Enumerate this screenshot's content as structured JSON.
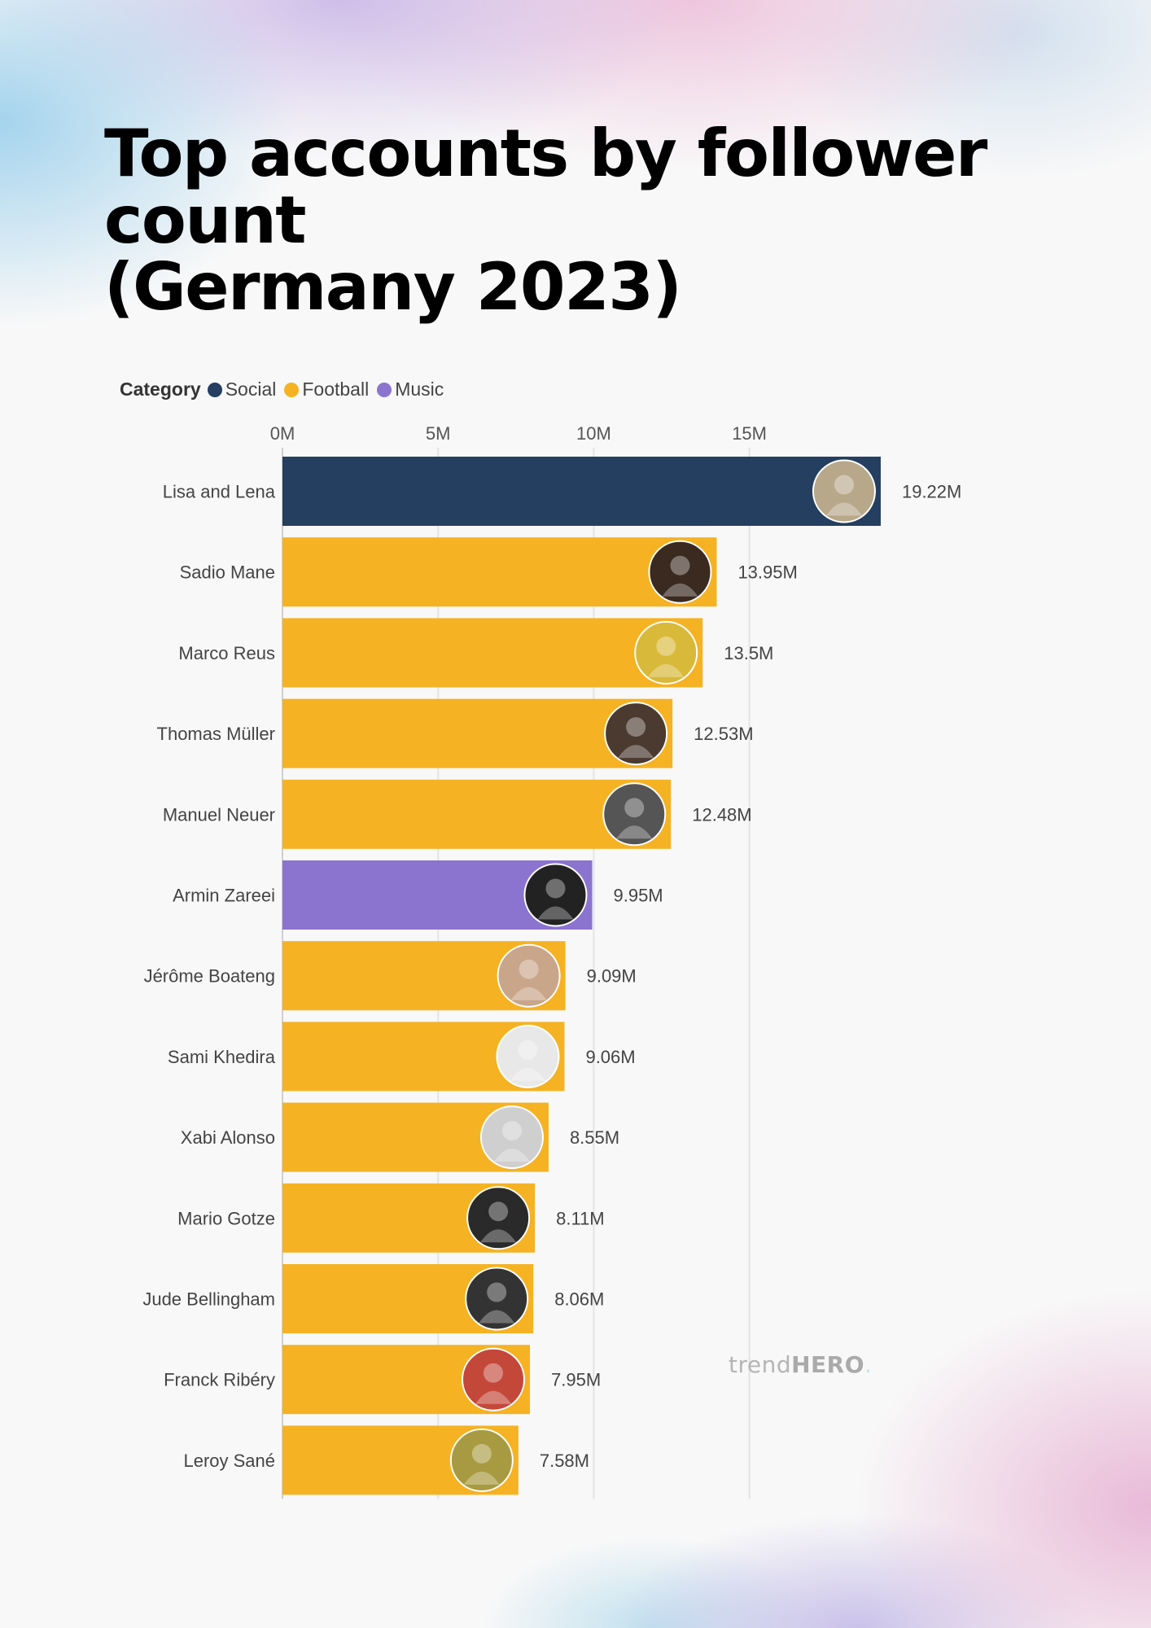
{
  "title_line1": "Top accounts by follower count",
  "title_line2": "(Germany 2023)",
  "watermark": {
    "light": "trend",
    "bold": "HERO",
    "dot": "."
  },
  "chart_data": {
    "type": "bar",
    "orientation": "horizontal",
    "title": "Top accounts by follower count (Germany 2023)",
    "legend": {
      "title": "Category",
      "placement": "top-left",
      "entries": [
        {
          "name": "Social",
          "color": "#243f5f"
        },
        {
          "name": "Football",
          "color": "#f5b223"
        },
        {
          "name": "Music",
          "color": "#8b73d0"
        }
      ]
    },
    "xaxis": {
      "position": "top",
      "ticks": [
        0,
        5,
        10,
        15
      ],
      "tick_labels": [
        "0M",
        "5M",
        "10M",
        "15M"
      ],
      "range": [
        0,
        19.22
      ],
      "unit": "M"
    },
    "grid": true,
    "categories": [
      "Lisa and Lena",
      "Sadio Mane",
      "Marco Reus",
      "Thomas Müller",
      "Manuel Neuer",
      "Armin Zareei",
      "Jérôme Boateng",
      "Sami Khedira",
      "Xabi Alonso",
      "Mario Gotze",
      "Jude Bellingham",
      "Franck Ribéry",
      "Leroy Sané"
    ],
    "values": [
      19.22,
      13.95,
      13.5,
      12.53,
      12.48,
      9.95,
      9.09,
      9.06,
      8.55,
      8.11,
      8.06,
      7.95,
      7.58
    ],
    "value_labels": [
      "19.22M",
      "13.95M",
      "13.5M",
      "12.53M",
      "12.48M",
      "9.95M",
      "9.09M",
      "9.06M",
      "8.55M",
      "8.11M",
      "8.06M",
      "7.95M",
      "7.58M"
    ],
    "category_of": [
      "Social",
      "Football",
      "Football",
      "Football",
      "Football",
      "Music",
      "Football",
      "Football",
      "Football",
      "Football",
      "Football",
      "Football",
      "Football"
    ],
    "avatar_colors": [
      "#b8a88a",
      "#3a2a20",
      "#d9b93a",
      "#4a3a30",
      "#555555",
      "#222222",
      "#c9a58a",
      "#e8e8e8",
      "#cfcfcf",
      "#2a2a2a",
      "#333333",
      "#c4483a",
      "#a89a40"
    ]
  }
}
